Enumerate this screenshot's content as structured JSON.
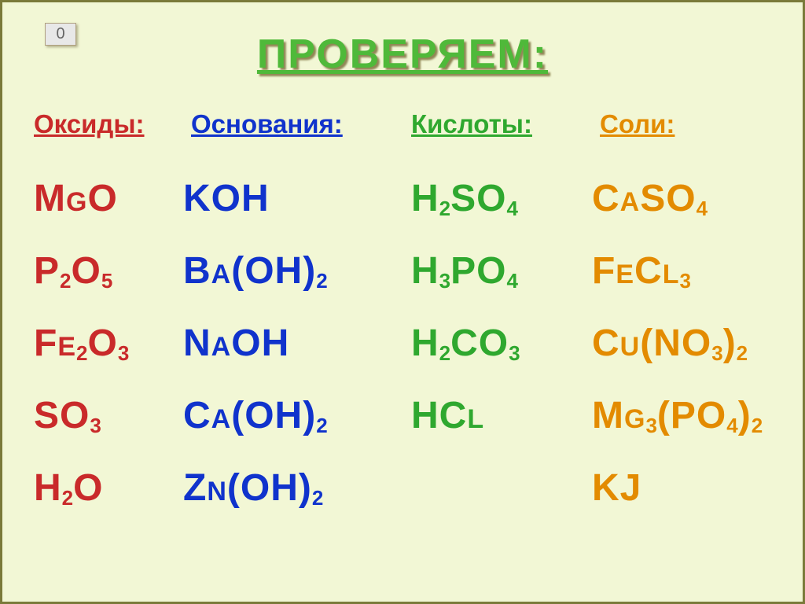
{
  "page_counter": "0",
  "title": "ПРОВЕРЯЕМ:",
  "colors": {
    "background": "#f2f7d5",
    "title": "#4fb93a",
    "oxides": "#c92a2a",
    "bases": "#1033cc",
    "acids": "#2fa82f",
    "salts": "#e38b00"
  },
  "typography": {
    "title_fontsize": 52,
    "header_fontsize": 33,
    "formula_fontsize": 48,
    "sub_fontsize": 26,
    "font_family": "Verdana"
  },
  "headers": {
    "oxides": "Оксиды:",
    "bases": "Основания:",
    "acids": "Кислоты:",
    "salts": "Соли:"
  },
  "columns": {
    "oxides": [
      {
        "html": "M<span class='sc'>g</span>O"
      },
      {
        "html": "P<sub>2</sub>O<sub>5</sub>"
      },
      {
        "html": "F<span class='sc'>e</span><sub>2</sub>O<sub>3</sub>"
      },
      {
        "html": "SO<sub>3</sub>"
      },
      {
        "html": "H<sub>2</sub>O"
      }
    ],
    "bases": [
      {
        "html": "KOH"
      },
      {
        "html": "B<span class='sc'>a</span>(OH)<sub>2</sub>"
      },
      {
        "html": "N<span class='sc'>a</span>OH"
      },
      {
        "html": "C<span class='sc'>a</span>(OH)<sub>2</sub>"
      },
      {
        "html": "Z<span class='sc'>n</span>(OH)<sub>2</sub>"
      }
    ],
    "acids": [
      {
        "html": "H<sub>2</sub>SO<sub>4</sub>"
      },
      {
        "html": "H<sub>3</sub>PO<sub>4</sub>"
      },
      {
        "html": "H<sub>2</sub>CO<sub>3</sub>"
      },
      {
        "html": "HC<span class='sc'>l</span>"
      }
    ],
    "salts": [
      {
        "html": "C<span class='sc'>a</span>SO<sub>4</sub>"
      },
      {
        "html": "F<span class='sc'>e</span>C<span class='sc'>l</span><sub>3</sub>"
      },
      {
        "html": "C<span class='sc'>u</span>(NO<sub>3</sub>)<sub>2</sub>"
      },
      {
        "html": "M<span class='sc'>g</span><sub>3</sub>(PO<sub>4</sub>)<sub>2</sub>"
      },
      {
        "html": "KJ"
      }
    ]
  }
}
